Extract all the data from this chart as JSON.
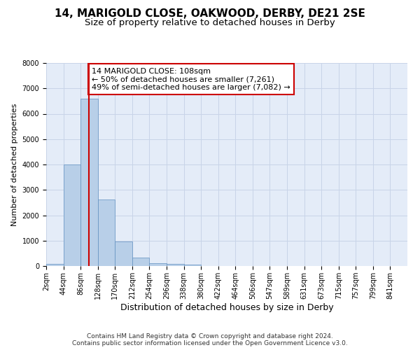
{
  "title1": "14, MARIGOLD CLOSE, OAKWOOD, DERBY, DE21 2SE",
  "title2": "Size of property relative to detached houses in Derby",
  "xlabel": "Distribution of detached houses by size in Derby",
  "ylabel": "Number of detached properties",
  "bin_labels": [
    "2sqm",
    "44sqm",
    "86sqm",
    "128sqm",
    "170sqm",
    "212sqm",
    "254sqm",
    "296sqm",
    "338sqm",
    "380sqm",
    "422sqm",
    "464sqm",
    "506sqm",
    "547sqm",
    "589sqm",
    "631sqm",
    "673sqm",
    "715sqm",
    "757sqm",
    "799sqm",
    "841sqm"
  ],
  "n_bins": 21,
  "bar_heights": [
    80,
    4000,
    6580,
    2620,
    960,
    330,
    110,
    75,
    50,
    0,
    0,
    0,
    0,
    0,
    0,
    0,
    0,
    0,
    0,
    0,
    0
  ],
  "bar_color": "#b8cfe8",
  "bar_edge_color": "#6090c0",
  "red_line_bin": 2.5,
  "annotation_text": "14 MARIGOLD CLOSE: 108sqm\n← 50% of detached houses are smaller (7,261)\n49% of semi-detached houses are larger (7,082) →",
  "annotation_box_color": "#ffffff",
  "annotation_box_edge": "#cc0000",
  "red_line_color": "#cc0000",
  "ylim": [
    0,
    8000
  ],
  "yticks": [
    0,
    1000,
    2000,
    3000,
    4000,
    5000,
    6000,
    7000,
    8000
  ],
  "grid_color": "#c8d4e8",
  "background_color": "#e4ecf8",
  "footer": "Contains HM Land Registry data © Crown copyright and database right 2024.\nContains public sector information licensed under the Open Government Licence v3.0.",
  "title1_fontsize": 11,
  "title2_fontsize": 9.5,
  "xlabel_fontsize": 9,
  "ylabel_fontsize": 8,
  "annotation_fontsize": 8,
  "footer_fontsize": 6.5,
  "tick_fontsize": 7
}
